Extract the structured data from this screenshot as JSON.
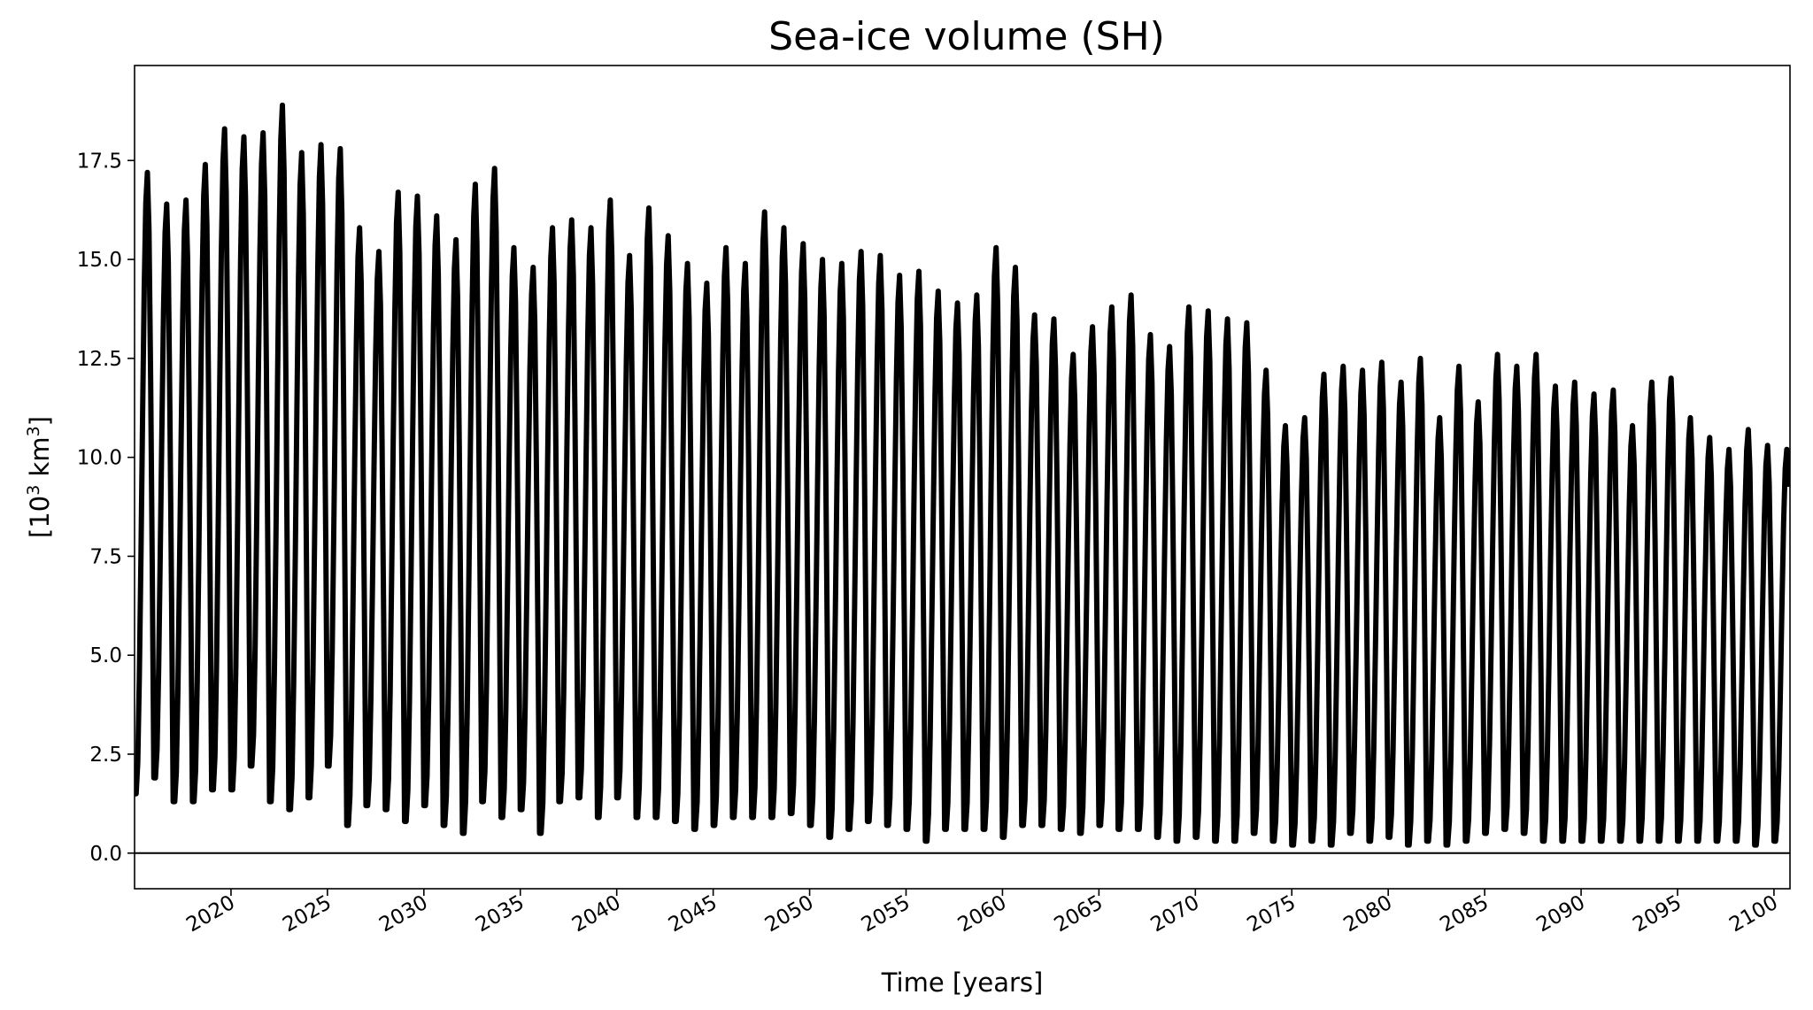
{
  "chart_data": {
    "type": "line",
    "title": "Sea-ice volume (SH)",
    "xlabel": "Time [years]",
    "ylabel": {
      "prefix": "[10",
      "sup1": "3",
      "mid": " km",
      "sup2": "3",
      "suffix": "]"
    },
    "xlim": [
      2015.0,
      2100.83
    ],
    "ylim": [
      -0.9,
      19.9
    ],
    "grid": false,
    "legend": "none",
    "x_ticks": [
      2020,
      2025,
      2030,
      2035,
      2040,
      2045,
      2050,
      2055,
      2060,
      2065,
      2070,
      2075,
      2080,
      2085,
      2090,
      2095,
      2100
    ],
    "x_tick_labels": [
      "2020",
      "2025",
      "2030",
      "2035",
      "2040",
      "2045",
      "2050",
      "2055",
      "2060",
      "2065",
      "2070",
      "2075",
      "2080",
      "2085",
      "2090",
      "2095",
      "2100"
    ],
    "y_ticks": [
      0.0,
      2.5,
      5.0,
      7.5,
      10.0,
      12.5,
      15.0,
      17.5
    ],
    "y_tick_labels": [
      "0.0",
      "2.5",
      "5.0",
      "7.5",
      "10.0",
      "12.5",
      "15.0",
      "17.5"
    ],
    "reference_line": {
      "y": 0.0,
      "color": "#000000"
    },
    "series": [
      {
        "color": "#000000",
        "sampling": "seasonal cycle; each year's minimum around Feb and maximum around Sep",
        "years": [
          2015,
          2016,
          2017,
          2018,
          2019,
          2020,
          2021,
          2022,
          2023,
          2024,
          2025,
          2026,
          2027,
          2028,
          2029,
          2030,
          2031,
          2032,
          2033,
          2034,
          2035,
          2036,
          2037,
          2038,
          2039,
          2040,
          2041,
          2042,
          2043,
          2044,
          2045,
          2046,
          2047,
          2048,
          2049,
          2050,
          2051,
          2052,
          2053,
          2054,
          2055,
          2056,
          2057,
          2058,
          2059,
          2060,
          2061,
          2062,
          2063,
          2064,
          2065,
          2066,
          2067,
          2068,
          2069,
          2070,
          2071,
          2072,
          2073,
          2074,
          2075,
          2076,
          2077,
          2078,
          2079,
          2080,
          2081,
          2082,
          2083,
          2084,
          2085,
          2086,
          2087,
          2088,
          2089,
          2090,
          2091,
          2092,
          2093,
          2094,
          2095,
          2096,
          2097,
          2098,
          2099,
          2100
        ],
        "annual_min": [
          1.5,
          1.9,
          1.3,
          1.3,
          1.6,
          1.6,
          2.2,
          1.3,
          1.1,
          1.4,
          2.2,
          0.7,
          1.2,
          1.1,
          0.8,
          1.2,
          0.7,
          0.5,
          1.3,
          0.9,
          1.1,
          0.5,
          1.3,
          1.4,
          0.9,
          1.4,
          0.9,
          0.9,
          0.8,
          0.6,
          0.7,
          0.9,
          0.9,
          0.9,
          1.0,
          0.7,
          0.4,
          0.6,
          0.8,
          0.7,
          0.6,
          0.3,
          0.6,
          0.6,
          0.6,
          0.4,
          0.7,
          0.7,
          0.6,
          0.5,
          0.7,
          0.6,
          0.6,
          0.4,
          0.3,
          0.4,
          0.3,
          0.3,
          0.5,
          0.3,
          0.2,
          0.3,
          0.2,
          0.5,
          0.3,
          0.4,
          0.2,
          0.3,
          0.2,
          0.3,
          0.5,
          0.6,
          0.5,
          0.3,
          0.3,
          0.3,
          0.3,
          0.3,
          0.3,
          0.3,
          0.3,
          0.3,
          0.3,
          0.3,
          0.2,
          0.3
        ],
        "annual_max": [
          17.2,
          16.4,
          16.5,
          17.4,
          18.3,
          18.1,
          18.2,
          18.9,
          17.7,
          17.9,
          17.8,
          15.8,
          15.2,
          16.7,
          16.6,
          16.1,
          15.5,
          16.9,
          17.3,
          15.3,
          14.8,
          15.8,
          16.0,
          15.8,
          16.5,
          15.1,
          16.3,
          15.6,
          14.9,
          14.4,
          15.3,
          14.9,
          16.2,
          15.8,
          15.4,
          15.0,
          14.9,
          15.2,
          15.1,
          14.6,
          14.7,
          14.2,
          13.9,
          14.1,
          15.3,
          14.8,
          13.6,
          13.5,
          12.6,
          13.3,
          13.8,
          14.1,
          13.1,
          12.8,
          13.8,
          13.7,
          13.5,
          13.4,
          12.2,
          10.8,
          11.0,
          12.1,
          12.3,
          12.2,
          12.4,
          11.9,
          12.5,
          11.0,
          12.3,
          11.4,
          12.6,
          12.3,
          12.6,
          11.8,
          11.9,
          11.6,
          11.7,
          10.8,
          11.9,
          12.0,
          11.0,
          10.5,
          10.2,
          10.7,
          10.3,
          10.2
        ]
      }
    ]
  }
}
